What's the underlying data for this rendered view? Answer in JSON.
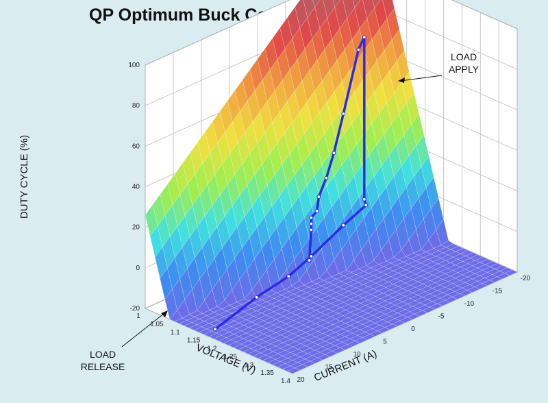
{
  "chart_data": {
    "type": "surface",
    "title": "QP Optimum Buck Converter Control Surface",
    "xlabel": "VOLTAGE (V)",
    "ylabel": "CURRENT (A)",
    "zlabel": "DUTY CYCLE (%)",
    "x_ticks": [
      "1",
      "1.05",
      "1.1",
      "1.15",
      "1.2",
      "1.25",
      "1.3",
      "1.35",
      "1.4"
    ],
    "y_ticks": [
      "20",
      "15",
      "10",
      "5",
      "0",
      "-5",
      "-10",
      "-15",
      "-20"
    ],
    "z_ticks": [
      "100",
      "80",
      "60",
      "40",
      "20",
      "0",
      "-20"
    ],
    "xlim": [
      1.0,
      1.4
    ],
    "ylim": [
      -20,
      20
    ],
    "zlim": [
      -20,
      100
    ],
    "grid": true,
    "annotations": [
      {
        "lines": [
          "LOAD",
          "APPLY"
        ]
      },
      {
        "lines": [
          "LOAD",
          "RELEASE"
        ]
      }
    ],
    "trajectory": [
      {
        "voltage": 1.19,
        "current": 20,
        "duty": -15
      },
      {
        "voltage": 1.15,
        "current": 10,
        "duty": -15
      },
      {
        "voltage": 1.13,
        "current": 3,
        "duty": -15
      },
      {
        "voltage": 1.1,
        "current": -3,
        "duty": -15
      },
      {
        "voltage": 1.05,
        "current": -12,
        "duty": -15
      },
      {
        "voltage": 1.02,
        "current": -18,
        "duty": -15
      },
      {
        "voltage": 1.0,
        "current": -19,
        "duty": -15
      },
      {
        "voltage": 1.0,
        "current": -19,
        "duty": 65
      },
      {
        "voltage": 1.03,
        "current": -16,
        "duty": 65
      },
      {
        "voltage": 1.05,
        "current": -12,
        "duty": 40
      },
      {
        "voltage": 1.07,
        "current": -9,
        "duty": 26
      },
      {
        "voltage": 1.08,
        "current": -7,
        "duty": 17
      },
      {
        "voltage": 1.09,
        "current": -5,
        "duty": 11
      },
      {
        "voltage": 1.1,
        "current": -4,
        "duty": 6
      },
      {
        "voltage": 1.1,
        "current": -3,
        "duty": 4
      },
      {
        "voltage": 1.1,
        "current": -3,
        "duty": 1
      },
      {
        "voltage": 1.1,
        "current": -3,
        "duty": -2
      },
      {
        "voltage": 1.11,
        "current": -2,
        "duty": -15
      }
    ],
    "colormap": [
      "#6c6ce6",
      "#3c8cf0",
      "#40e0e0",
      "#a0ee50",
      "#f0e040",
      "#f0a040",
      "#e04848",
      "#b06068"
    ]
  }
}
